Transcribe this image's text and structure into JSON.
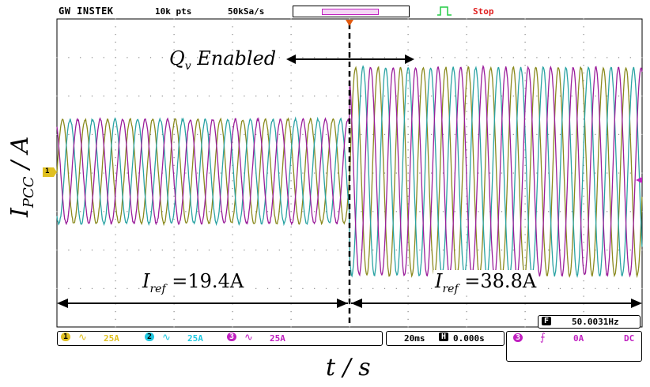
{
  "header": {
    "brand": "GW INSTEK",
    "record_length": "10k pts",
    "sample_rate": "50kSa/s",
    "run_state": "Stop"
  },
  "labels": {
    "ylabel_main": "I",
    "ylabel_sub": "PCC",
    "ylabel_unit": " / A",
    "xlabel": "t / s",
    "annotation_qv_main": "Q",
    "annotation_qv_sub": "v",
    "annotation_qv_text": " Enabled",
    "iref_left_main": "I",
    "iref_left_sub": "ref",
    "iref_left_value": " =19.4A",
    "iref_right_main": "I",
    "iref_right_sub": "ref",
    "iref_right_value": " =38.8A"
  },
  "scope": {
    "ch1_marker": "1",
    "ch1_scale": "25A",
    "ch2_scale": "25A",
    "ch3_scale": "25A",
    "ch1_num": "1",
    "ch2_num": "2",
    "ch3_num": "3",
    "timebase": "20ms",
    "h_label": "H",
    "h_position": "0.000s",
    "freq_label": "F",
    "frequency": "50.0031Hz",
    "trig_source": "3",
    "trig_level": "0A",
    "trig_coupling": "DC"
  },
  "colors": {
    "ch1": "#8a8a1e",
    "ch2": "#2aa3a3",
    "ch3": "#9b1f9b",
    "ch1_ui": "#e0c020",
    "ch2_ui": "#20c8e0",
    "ch3_ui": "#c020c0",
    "grid": "#888888"
  },
  "chart_data": {
    "type": "line",
    "x_divisions": 10,
    "y_divisions": 8,
    "frequency_hz": 50,
    "series": [
      {
        "channel": "1",
        "phase_deg": 0,
        "amp_before_div": 1.35,
        "amp_after_div": 2.7
      },
      {
        "channel": "2",
        "phase_deg": -120,
        "amp_before_div": 1.35,
        "amp_after_div": 2.7
      },
      {
        "channel": "3",
        "phase_deg": 120,
        "amp_before_div": 1.35,
        "amp_after_div": 2.7
      }
    ],
    "step_division": 5.0
  }
}
